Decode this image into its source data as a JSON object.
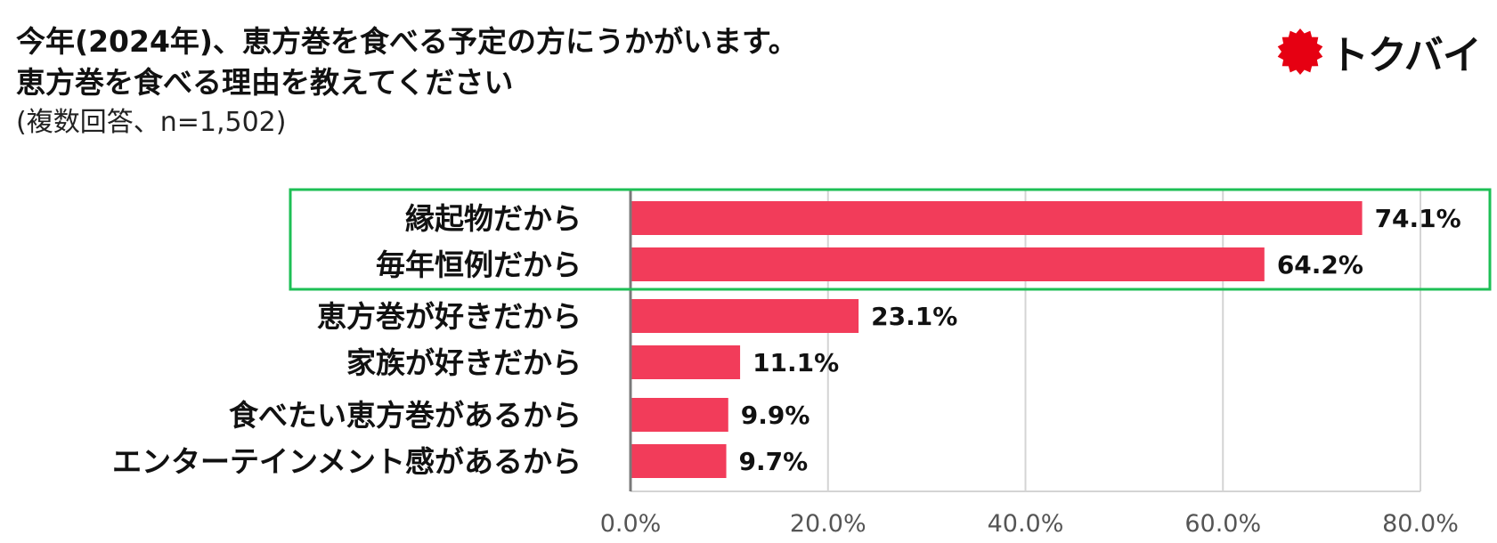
{
  "header": {
    "title_line1": "今年(2024年)、恵方巻を食べる予定の方にうかがいます。",
    "title_line2": "恵方巻を食べる理由を教えてください",
    "subtitle": "(複数回答、n=1,502)"
  },
  "logo": {
    "text": "トクバイ",
    "icon": "red-sun-badge-icon",
    "color": "#e60012"
  },
  "colors": {
    "bar": "#f23c5a",
    "highlight": "#1dbf55",
    "grid": "#d4d4d4"
  },
  "chart_data": {
    "type": "bar",
    "orientation": "horizontal",
    "categories": [
      "縁起物だから",
      "毎年恒例だから",
      "恵方巻が好きだから",
      "家族が好きだから",
      "食べたい恵方巻があるから",
      "エンターテインメント感があるから"
    ],
    "values": [
      74.1,
      64.2,
      23.1,
      11.1,
      9.9,
      9.7
    ],
    "value_labels": [
      "74.1%",
      "64.2%",
      "23.1%",
      "11.1%",
      "9.9%",
      "9.7%"
    ],
    "xlim": [
      0,
      80
    ],
    "ticks": [
      0,
      20,
      40,
      60,
      80
    ],
    "tick_labels": [
      "0.0%",
      "20.0%",
      "40.0%",
      "60.0%",
      "80.0%"
    ],
    "grid": true,
    "highlighted_categories": [
      "縁起物だから",
      "毎年恒例だから"
    ]
  }
}
